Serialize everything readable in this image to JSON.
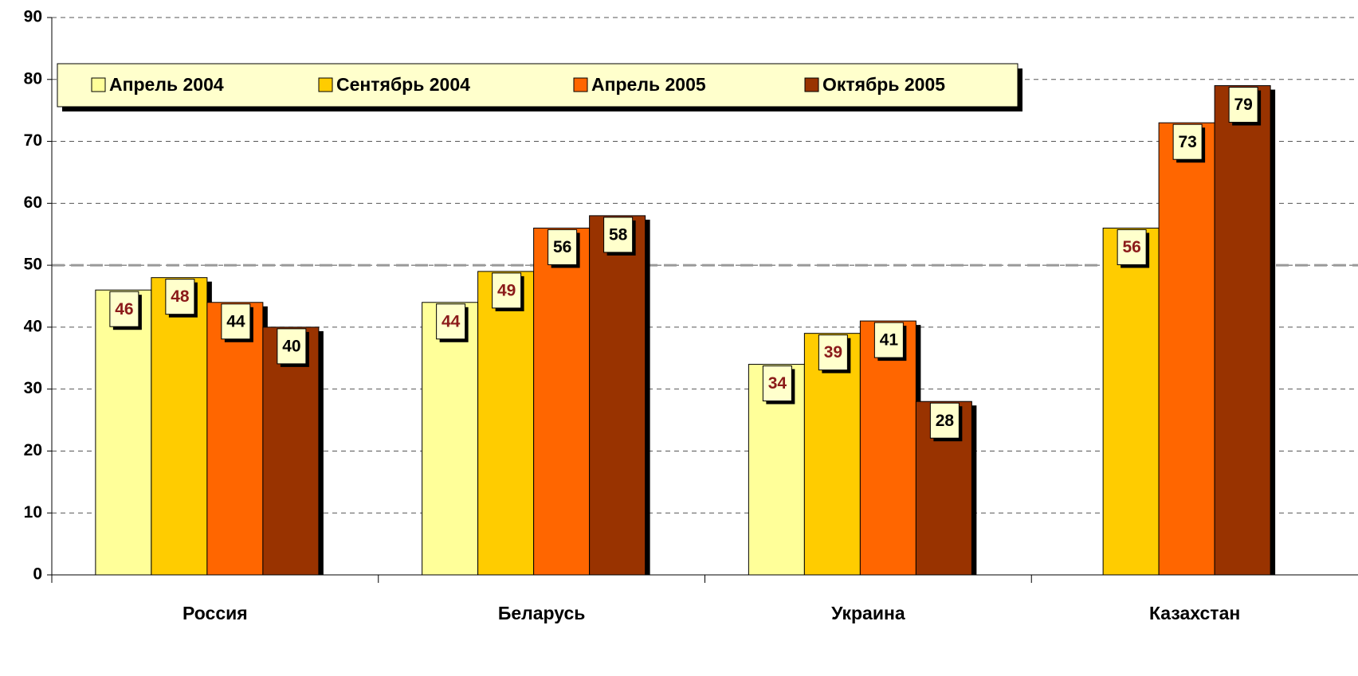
{
  "chart_data": {
    "type": "bar",
    "categories": [
      "Россия",
      "Беларусь",
      "Украина",
      "Казахстан"
    ],
    "series": [
      {
        "name": "Апрель 2004",
        "color": "#ffff99",
        "label_color": "#8b1a1a",
        "values": [
          46,
          44,
          34,
          null
        ]
      },
      {
        "name": "Сентябрь 2004",
        "color": "#ffcc00",
        "label_color": "#8b1a1a",
        "values": [
          48,
          49,
          39,
          56
        ]
      },
      {
        "name": "Апрель 2005",
        "color": "#ff6600",
        "label_color": "#000000",
        "values": [
          44,
          56,
          41,
          73
        ]
      },
      {
        "name": "Октябрь 2005",
        "color": "#993300",
        "label_color": "#000000",
        "values": [
          40,
          58,
          28,
          79
        ]
      }
    ],
    "ylim": [
      0,
      90
    ],
    "yticks": [
      0,
      10,
      20,
      30,
      40,
      50,
      60,
      70,
      80,
      90
    ],
    "grid": true,
    "reference_line": 50,
    "legend": "top-left"
  }
}
